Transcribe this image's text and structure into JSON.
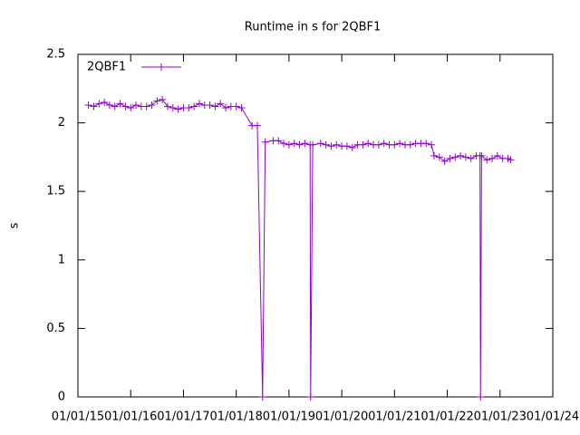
{
  "chart_data": {
    "type": "line",
    "title": "Runtime in s for 2QBF1",
    "y_label": "s",
    "legend": "top-left",
    "xlim": [
      2015,
      2024
    ],
    "ylim": [
      0,
      2.5
    ],
    "yticks": [
      0,
      0.5,
      1,
      1.5,
      2,
      2.5
    ],
    "xticks": [
      {
        "value": 2015,
        "label": "01/01/15"
      },
      {
        "value": 2016,
        "label": "01/01/16"
      },
      {
        "value": 2017,
        "label": "01/01/17"
      },
      {
        "value": 2018,
        "label": "01/01/18"
      },
      {
        "value": 2019,
        "label": "01/01/19"
      },
      {
        "value": 2020,
        "label": "01/01/20"
      },
      {
        "value": 2021,
        "label": "01/01/21"
      },
      {
        "value": 2022,
        "label": "01/01/22"
      },
      {
        "value": 2023,
        "label": "01/01/23"
      },
      {
        "value": 2024,
        "label": "01/01/24"
      }
    ],
    "x": [
      2015.2,
      2015.3,
      2015.4,
      2015.5,
      2015.6,
      2015.7,
      2015.8,
      2015.9,
      2016.0,
      2016.1,
      2016.2,
      2016.3,
      2016.4,
      2016.5,
      2016.6,
      2016.7,
      2016.8,
      2016.9,
      2017.0,
      2017.1,
      2017.2,
      2017.3,
      2017.4,
      2017.5,
      2017.6,
      2017.7,
      2017.8,
      2017.9,
      2018.0,
      2018.1,
      2018.3,
      2018.4,
      2018.5,
      2018.55,
      2018.7,
      2018.8,
      2018.9,
      2019.0,
      2019.1,
      2019.2,
      2019.3,
      2019.4,
      2019.41,
      2019.45,
      2019.6,
      2019.7,
      2019.8,
      2019.9,
      2020.0,
      2020.1,
      2020.2,
      2020.3,
      2020.4,
      2020.5,
      2020.6,
      2020.7,
      2020.8,
      2020.9,
      2021.0,
      2021.1,
      2021.2,
      2021.3,
      2021.4,
      2021.5,
      2021.6,
      2021.7,
      2021.75,
      2021.85,
      2021.95,
      2022.05,
      2022.15,
      2022.25,
      2022.35,
      2022.45,
      2022.55,
      2022.62,
      2022.63,
      2022.65,
      2022.75,
      2022.85,
      2022.95,
      2023.05,
      2023.15,
      2023.2
    ],
    "series": [
      {
        "name": "2QBF1",
        "color": "#9400d3",
        "values": [
          2.13,
          2.12,
          2.14,
          2.15,
          2.13,
          2.12,
          2.14,
          2.12,
          2.11,
          2.13,
          2.12,
          2.12,
          2.13,
          2.16,
          2.17,
          2.12,
          2.11,
          2.1,
          2.11,
          2.11,
          2.12,
          2.14,
          2.13,
          2.13,
          2.12,
          2.14,
          2.11,
          2.12,
          2.12,
          2.11,
          1.98,
          1.98,
          0,
          1.86,
          1.87,
          1.87,
          1.85,
          1.84,
          1.85,
          1.84,
          1.85,
          1.84,
          0,
          1.84,
          1.85,
          1.84,
          1.83,
          1.84,
          1.83,
          1.83,
          1.82,
          1.84,
          1.84,
          1.85,
          1.84,
          1.84,
          1.85,
          1.84,
          1.84,
          1.85,
          1.84,
          1.84,
          1.85,
          1.85,
          1.85,
          1.84,
          1.76,
          1.75,
          1.72,
          1.74,
          1.75,
          1.76,
          1.75,
          1.74,
          1.76,
          1.76,
          0,
          1.76,
          1.73,
          1.74,
          1.76,
          1.74,
          1.74,
          1.73
        ]
      }
    ]
  }
}
